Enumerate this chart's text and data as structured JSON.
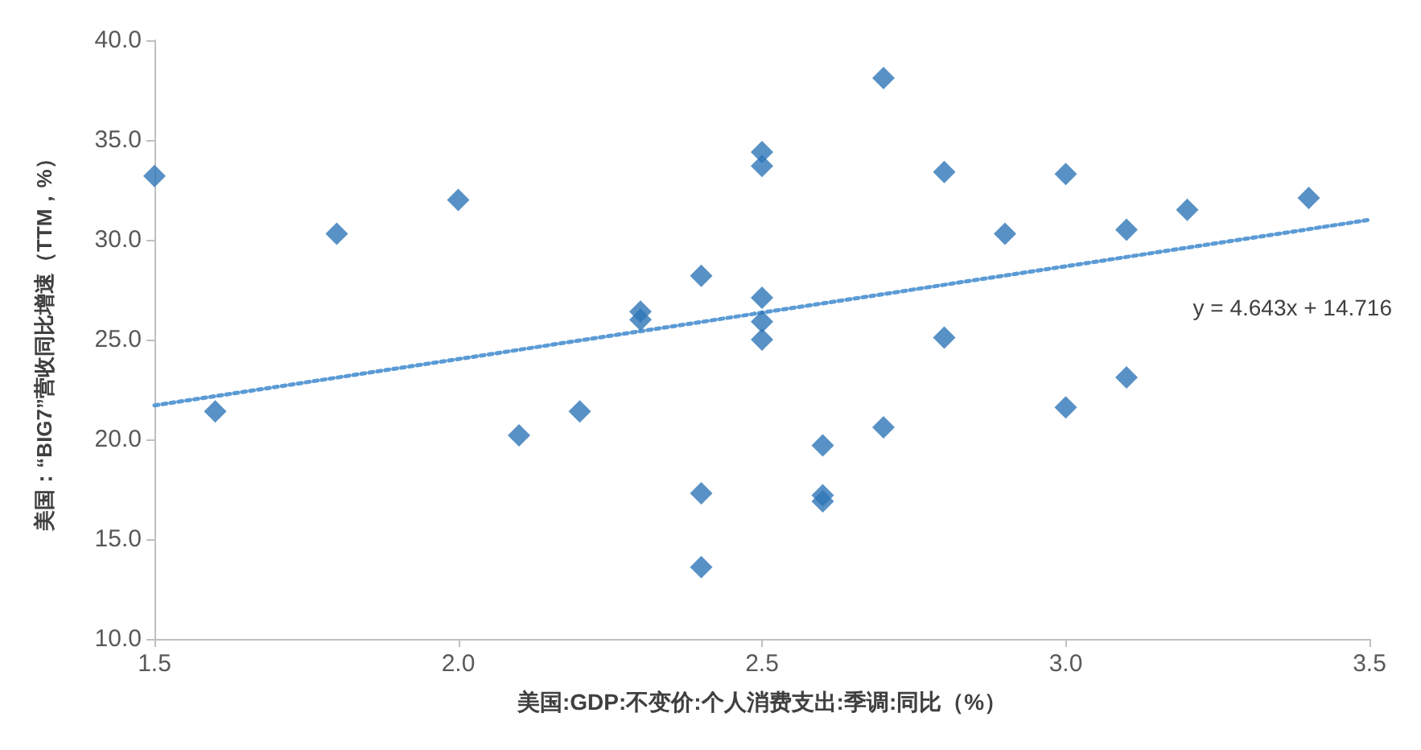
{
  "chart_data": {
    "type": "scatter",
    "xlabel": "美国:GDP:不变价:个人消费支出:季调:同比（%）",
    "ylabel": "美国：“BIG7”营收同比增速（TTM，%）",
    "marker": "diamond",
    "grid": false,
    "xlim": [
      1.5,
      3.5
    ],
    "ylim": [
      10,
      40
    ],
    "xticks": [
      {
        "value": 1.5,
        "label": "1.5"
      },
      {
        "value": 2,
        "label": "2.0"
      },
      {
        "value": 2.5,
        "label": "2.5"
      },
      {
        "value": 3,
        "label": "3.0"
      },
      {
        "value": 3.5,
        "label": "3.5"
      }
    ],
    "yticks": [
      {
        "value": 10,
        "label": "10.0"
      },
      {
        "value": 15,
        "label": "15.0"
      },
      {
        "value": 20,
        "label": "20.0"
      },
      {
        "value": 25,
        "label": "25.0"
      },
      {
        "value": 30,
        "label": "30.0"
      },
      {
        "value": 35,
        "label": "35.0"
      },
      {
        "value": 40,
        "label": "40.0"
      }
    ],
    "annotations": [
      "y = 4.643x + 14.716"
    ],
    "series": [
      {
        "color": "#2e75b6",
        "x": [
          1.5,
          1.6,
          1.8,
          2.0,
          2.1,
          2.2,
          2.3,
          2.3,
          2.4,
          2.4,
          2.4,
          2.5,
          2.5,
          2.5,
          2.5,
          2.5,
          2.6,
          2.6,
          2.6,
          2.7,
          2.7,
          2.8,
          2.8,
          2.9,
          3.0,
          3.0,
          3.1,
          3.1,
          3.2,
          3.4
        ],
        "values": [
          33.2,
          21.4,
          30.3,
          32.0,
          20.2,
          21.4,
          26.4,
          26.0,
          28.2,
          17.3,
          13.6,
          34.4,
          33.7,
          27.1,
          25.9,
          25.0,
          19.7,
          17.2,
          16.9,
          38.1,
          20.6,
          33.4,
          25.1,
          30.3,
          33.3,
          21.6,
          30.5,
          23.1,
          31.5,
          32.1
        ]
      },
      {
        "type": "line",
        "color": "#5b9bd5",
        "line_style": "dotted",
        "marker": "none",
        "x": [
          1.5,
          3.5
        ],
        "values": [
          21.7,
          31.0
        ]
      }
    ]
  }
}
